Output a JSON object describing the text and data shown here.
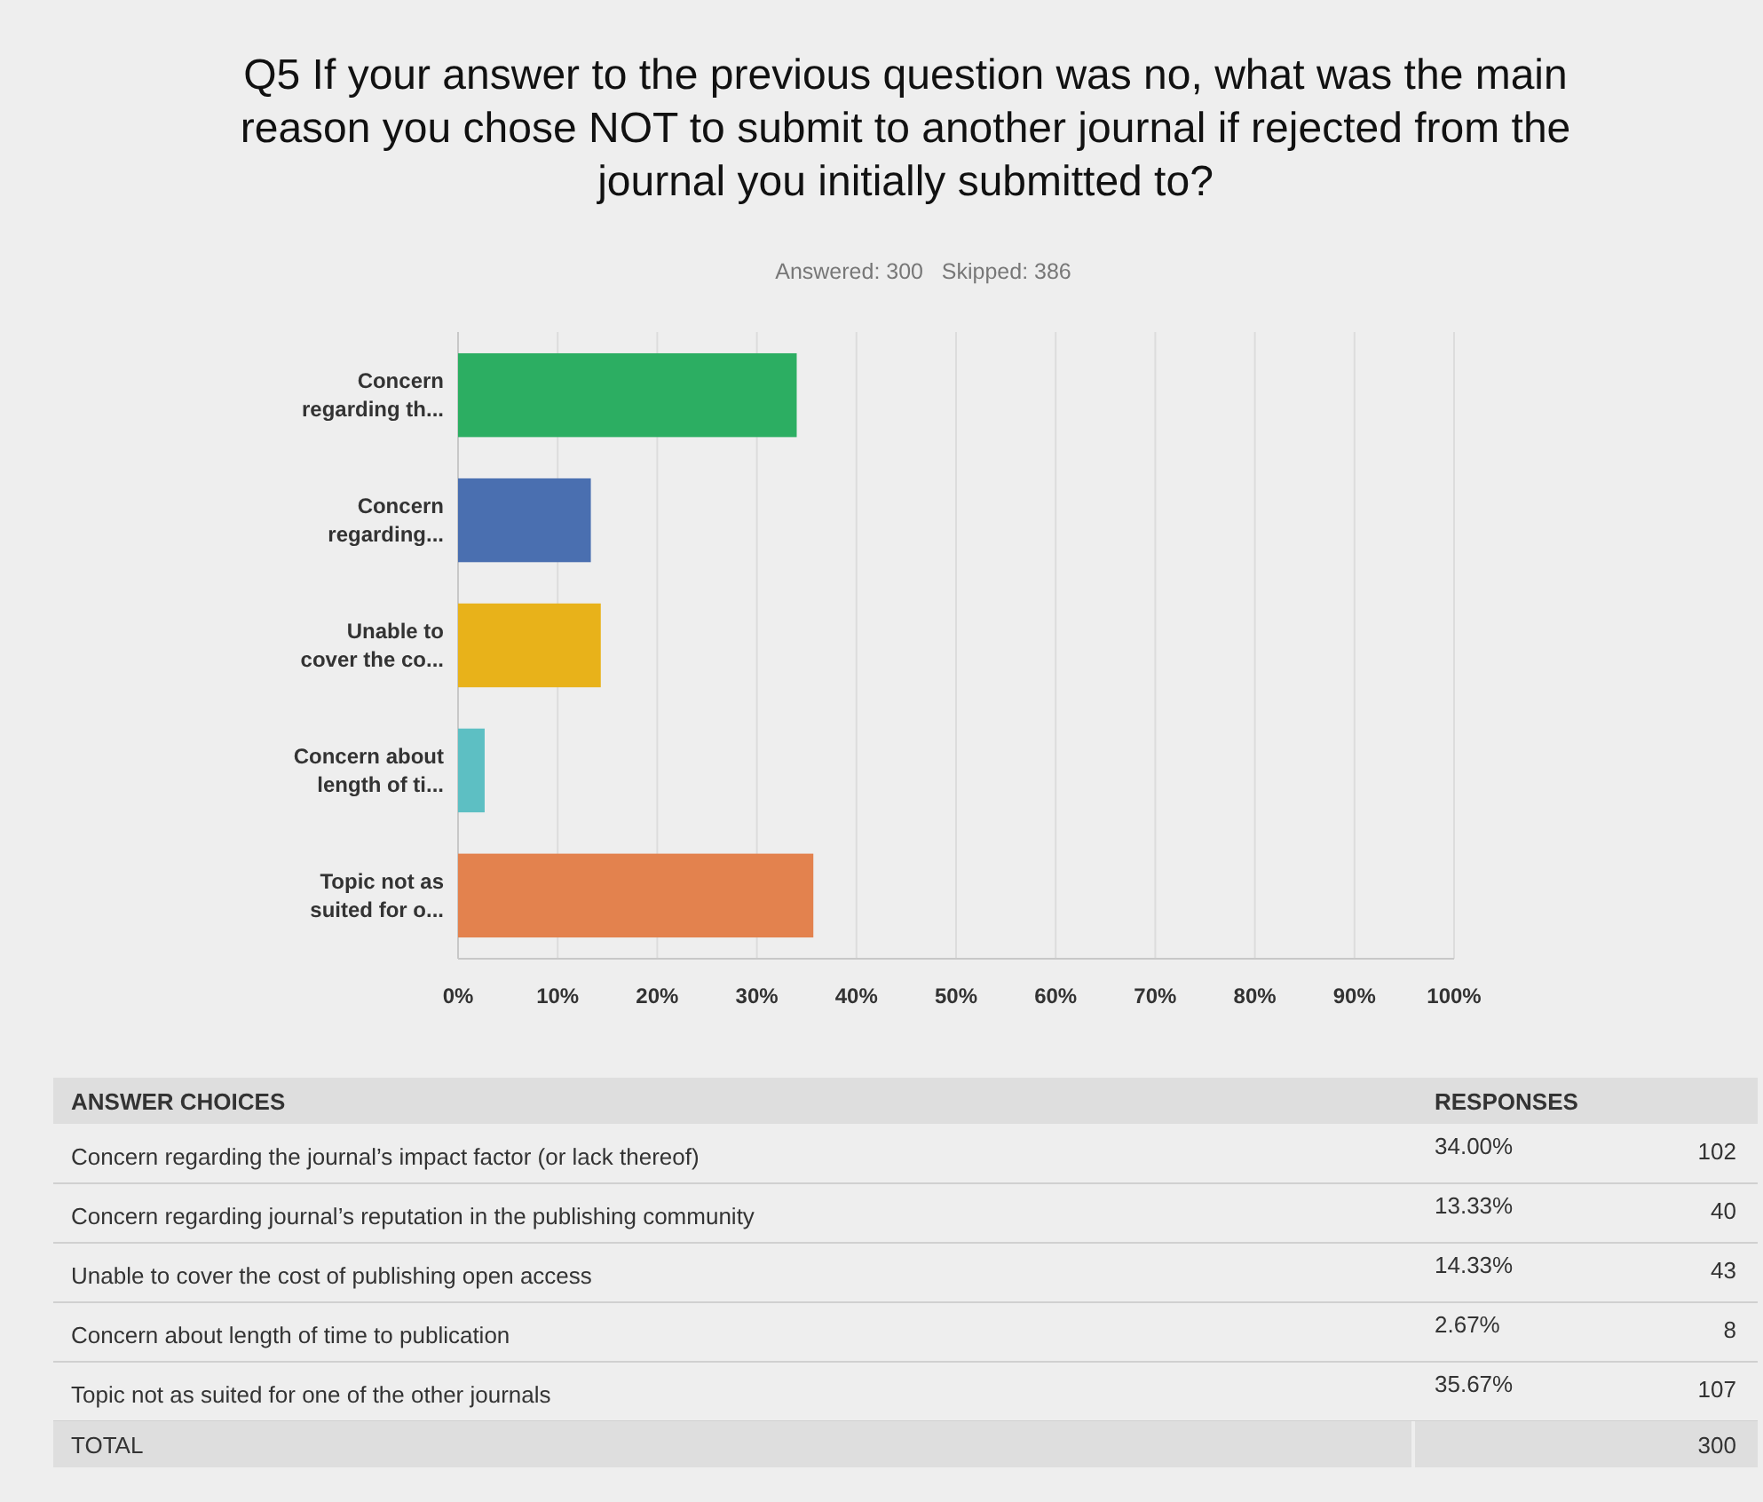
{
  "chart_data": [
    {
      "type": "bar",
      "orientation": "horizontal",
      "title": "Q5 If your answer to the previous question was no, what was the main reason you chose NOT to submit to another journal if rejected from the journal you initially submitted to?",
      "subtitle": "Answered: 300   Skipped: 386",
      "categories": [
        "Concern regarding th...",
        "Concern regarding...",
        "Unable to cover the co...",
        "Concern about length of ti...",
        "Topic not as suited for o..."
      ],
      "values": [
        34.0,
        13.33,
        14.33,
        2.67,
        35.67
      ],
      "colors": [
        "#2cae62",
        "#4a6fb0",
        "#e8b21a",
        "#5dbfc3",
        "#e3824e"
      ],
      "xlim": [
        0,
        100
      ],
      "xticks": [
        {
          "value": 0,
          "label": "0%"
        },
        {
          "value": 10,
          "label": "10%"
        },
        {
          "value": 20,
          "label": "20%"
        },
        {
          "value": 30,
          "label": "30%"
        },
        {
          "value": 40,
          "label": "40%"
        },
        {
          "value": 50,
          "label": "50%"
        },
        {
          "value": 60,
          "label": "60%"
        },
        {
          "value": 70,
          "label": "70%"
        },
        {
          "value": 80,
          "label": "80%"
        },
        {
          "value": 90,
          "label": "90%"
        },
        {
          "value": 100,
          "label": "100%"
        }
      ],
      "grid": "x"
    },
    {
      "type": "other",
      "annotations": [
        "ANSWER CHOICES",
        "RESPONSES",
        "TOTAL"
      ],
      "categories": [
        "Concern regarding the journal’s impact factor (or lack thereof)",
        "Concern regarding journal’s reputation in the publishing community",
        "Unable to cover the cost of publishing open access",
        "Concern about length of time to publication",
        "Topic not as suited for one of the other journals"
      ],
      "series": [
        {
          "values": [
            34.0,
            13.33,
            14.33,
            2.67,
            35.67
          ],
          "value_labels": [
            "34.00%",
            "13.33%",
            "14.33%",
            "2.67%",
            "35.67%"
          ]
        },
        {
          "values": [
            102,
            40,
            43,
            8,
            107
          ]
        }
      ],
      "data_labels": true,
      "totals": [
        "300"
      ]
    }
  ]
}
